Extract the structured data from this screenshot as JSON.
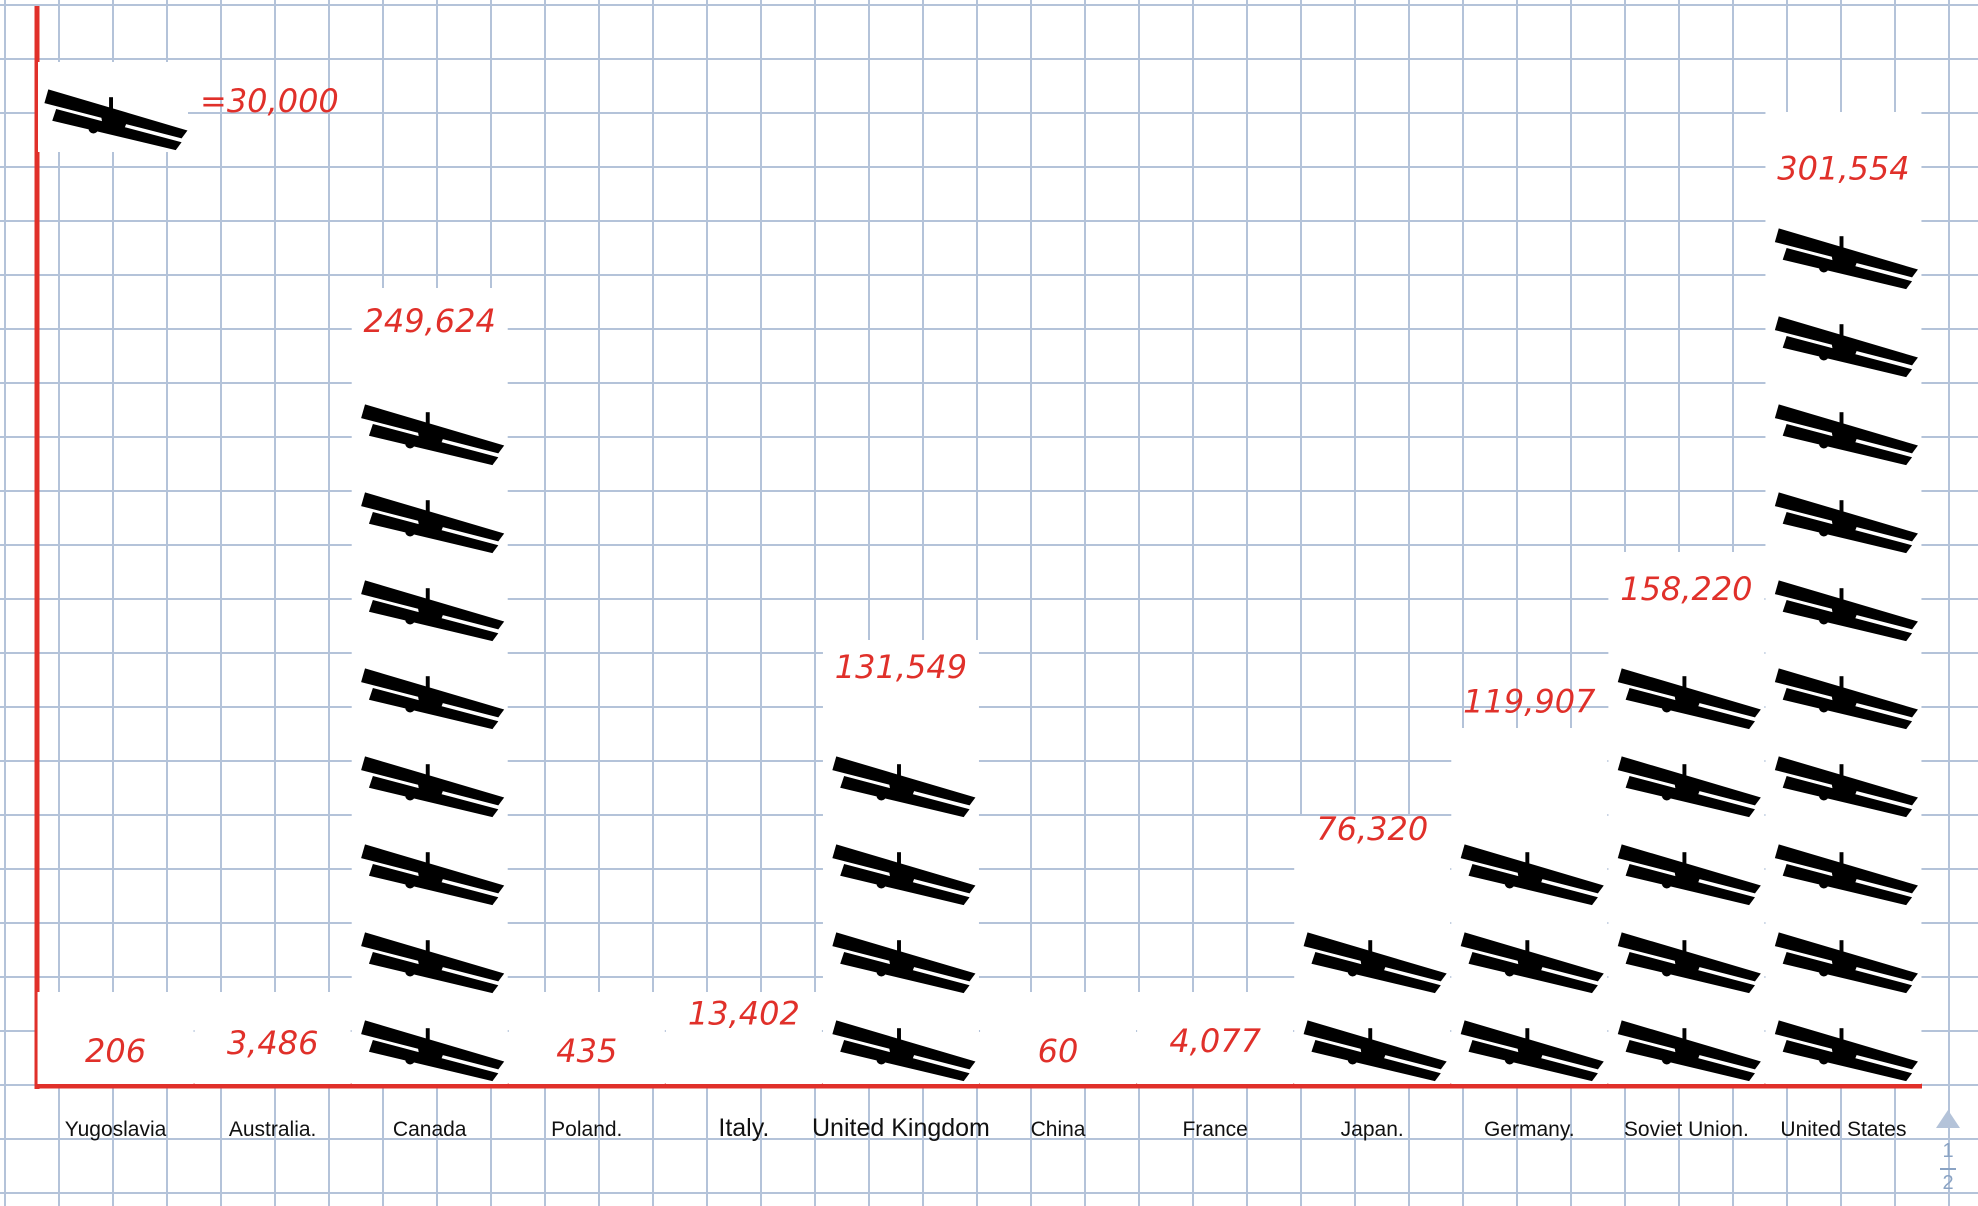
{
  "chart_data": {
    "type": "bar",
    "style": "pictograph",
    "icon": "biplane-icon",
    "key": {
      "symbol": "biplane-icon",
      "label": "=30,000",
      "units_per_icon": 30000
    },
    "categories": [
      "Yugoslavia",
      "Australia.",
      "Canada",
      "Poland.",
      "Italy.",
      "United Kingdom",
      "China",
      "France",
      "Japan.",
      "Germany.",
      "Soviet Union.",
      "United States"
    ],
    "values": [
      206,
      3486,
      249624,
      435,
      13402,
      131549,
      60,
      4077,
      76320,
      119907,
      158220,
      301554
    ],
    "data_labels": [
      "206",
      "3,486",
      "249,624",
      "435",
      "13,402",
      "131,549",
      "60",
      "4,077",
      "76,320",
      "119,907",
      "158,220",
      "301,554"
    ],
    "title": "",
    "xlabel": "",
    "ylabel": "",
    "grid": true,
    "colors": {
      "axis": "#e0302a",
      "labels": "#e0302a",
      "icon": "#000000",
      "grid": "#b4c3d9"
    }
  },
  "pager": {
    "current": "1",
    "total": "2"
  }
}
